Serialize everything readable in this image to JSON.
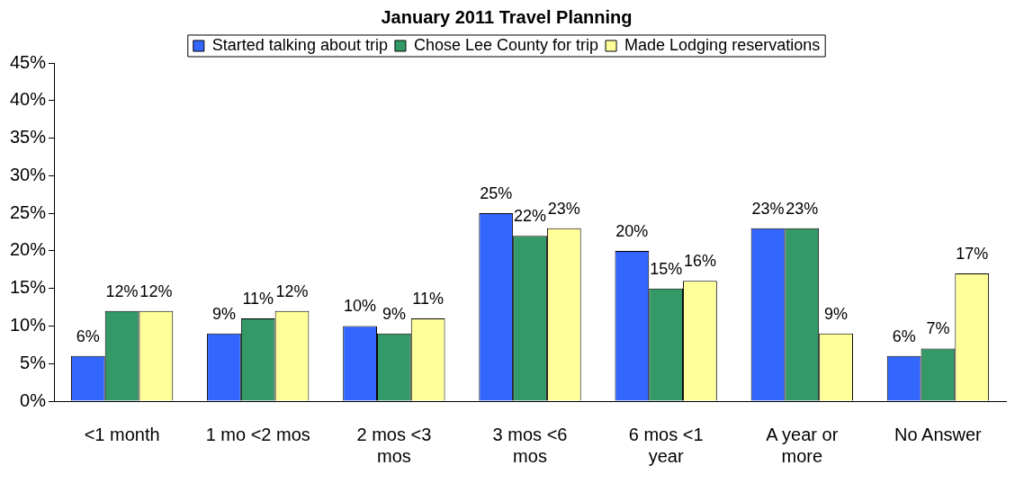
{
  "chart_data": {
    "type": "bar",
    "title": "January 2011 Travel Planning",
    "categories": [
      "<1 month",
      "1 mo <2 mos",
      "2 mos <3 mos",
      "3 mos <6 mos",
      "6 mos <1 year",
      "A year or more",
      "No Answer"
    ],
    "series": [
      {
        "name": "Started talking about trip",
        "color": "#3366ff",
        "values": [
          6,
          9,
          10,
          25,
          20,
          23,
          6
        ],
        "value_labels": [
          "6%",
          "9%",
          "10%",
          "25%",
          "20%",
          "23%",
          "6%"
        ]
      },
      {
        "name": "Chose Lee County for trip",
        "color": "#339966",
        "values": [
          12,
          11,
          9,
          22,
          15,
          23,
          7
        ],
        "value_labels": [
          "12%",
          "11%",
          "9%",
          "22%",
          "15%",
          "23%",
          "7%"
        ]
      },
      {
        "name": "Made Lodging reservations",
        "color": "#ffff99",
        "values": [
          12,
          12,
          11,
          23,
          16,
          9,
          17
        ],
        "value_labels": [
          "12%",
          "12%",
          "11%",
          "23%",
          "16%",
          "9%",
          "17%"
        ]
      }
    ],
    "ylim": [
      0,
      45
    ],
    "yticks": [
      {
        "value": 0,
        "label": "0%"
      },
      {
        "value": 5,
        "label": "5%"
      },
      {
        "value": 10,
        "label": "10%"
      },
      {
        "value": 15,
        "label": "15%"
      },
      {
        "value": 20,
        "label": "20%"
      },
      {
        "value": 25,
        "label": "25%"
      },
      {
        "value": 30,
        "label": "30%"
      },
      {
        "value": 35,
        "label": "35%"
      },
      {
        "value": 40,
        "label": "40%"
      },
      {
        "value": 45,
        "label": "45%"
      }
    ],
    "grid": false,
    "legend": "top"
  }
}
